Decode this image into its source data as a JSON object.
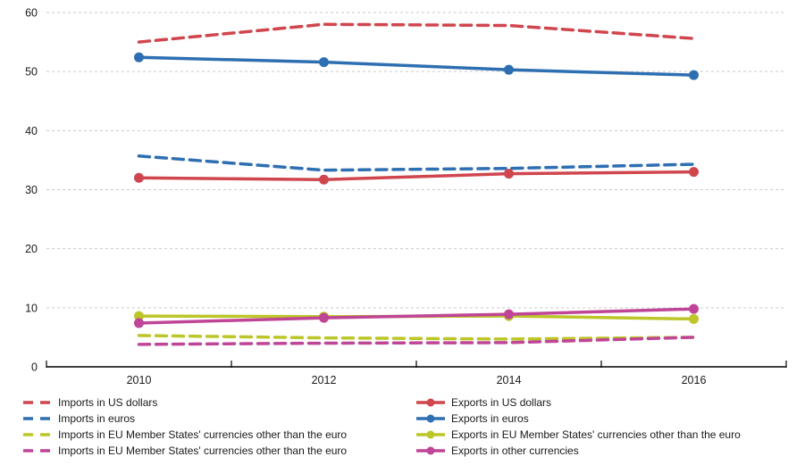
{
  "chart_data": {
    "type": "line",
    "title": "",
    "xlabel": "",
    "ylabel": "",
    "x_tick_labels": [
      "2010",
      "2012",
      "2014",
      "2016"
    ],
    "y_ticks": [
      0,
      10,
      20,
      30,
      40,
      50,
      60
    ],
    "ylim": [
      0,
      60
    ],
    "grid": "horizontal-dashed",
    "legend_position": "bottom-two-columns",
    "colors": {
      "red": "#d0464e",
      "blue": "#2e6fb2",
      "yellow_green": "#bcc629",
      "magenta": "#bf4597",
      "gridline": "#c9c9c9",
      "axis": "#000000"
    },
    "series": [
      {
        "name": "Imports in US dollars",
        "color": "#d0464e",
        "style": "dashed",
        "marker": false,
        "legend_column": "left",
        "values": [
          55.0,
          58.0,
          57.8,
          55.6
        ]
      },
      {
        "name": "Imports in euros",
        "color": "#2e6fb2",
        "style": "dashed",
        "marker": false,
        "legend_column": "left",
        "values": [
          35.7,
          33.3,
          33.6,
          34.3
        ]
      },
      {
        "name": "Imports in EU Member States' currencies other than the euro",
        "color": "#bcc629",
        "style": "dashed",
        "marker": false,
        "legend_column": "left",
        "values": [
          5.3,
          4.9,
          4.7,
          5.0
        ]
      },
      {
        "name": "Imports in EU Member States' currencies other than the euro",
        "color": "#bf4597",
        "style": "dashed",
        "marker": false,
        "legend_column": "left",
        "values": [
          3.8,
          4.0,
          4.1,
          5.0
        ]
      },
      {
        "name": "Exports in US dollars",
        "color": "#d0464e",
        "style": "solid",
        "marker": true,
        "legend_column": "right",
        "values": [
          32.0,
          31.7,
          32.7,
          33.0
        ]
      },
      {
        "name": "Exports in euros",
        "color": "#2e6fb2",
        "style": "solid",
        "marker": true,
        "legend_column": "right",
        "values": [
          52.4,
          51.6,
          50.3,
          49.4
        ]
      },
      {
        "name": "Exports in EU Member States' currencies other than the euro",
        "color": "#bcc629",
        "style": "solid",
        "marker": true,
        "legend_column": "right",
        "values": [
          8.6,
          8.5,
          8.6,
          8.1
        ]
      },
      {
        "name": "Exports in other currencies",
        "color": "#bf4597",
        "style": "solid",
        "marker": true,
        "legend_column": "right",
        "values": [
          7.4,
          8.3,
          8.9,
          9.8
        ]
      }
    ]
  }
}
